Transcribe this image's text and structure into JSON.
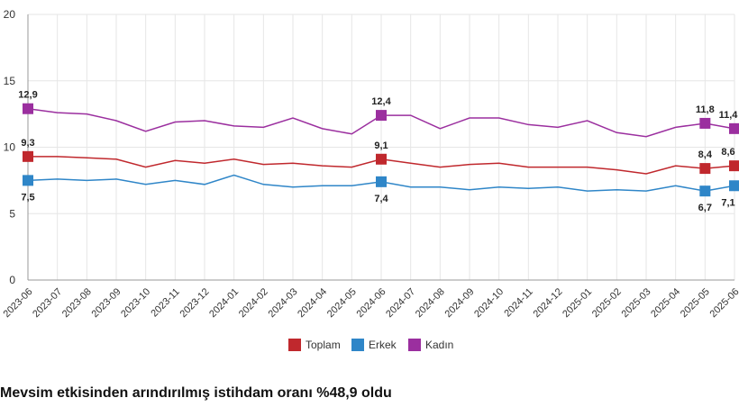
{
  "chart_data": {
    "type": "line",
    "title": "",
    "xlabel": "",
    "ylabel": "",
    "ylim": [
      0,
      20
    ],
    "yticks": [
      "0",
      "5",
      "10",
      "15",
      "20"
    ],
    "grid": true,
    "legend_position": "bottom",
    "categories": [
      "2023-06",
      "2023-07",
      "2023-08",
      "2023-09",
      "2023-10",
      "2023-11",
      "2023-12",
      "2024-01",
      "2024-02",
      "2024-03",
      "2024-04",
      "2024-05",
      "2024-06",
      "2024-07",
      "2024-08",
      "2024-09",
      "2024-10",
      "2024-11",
      "2024-12",
      "2025-01",
      "2025-02",
      "2025-03",
      "2025-04",
      "2025-05",
      "2025-06"
    ],
    "series": [
      {
        "name": "Toplam",
        "color": "#c0282d",
        "values": [
          9.3,
          9.3,
          9.2,
          9.1,
          8.5,
          9.0,
          8.8,
          9.1,
          8.7,
          8.8,
          8.6,
          8.5,
          9.1,
          8.8,
          8.5,
          8.7,
          8.8,
          8.5,
          8.5,
          8.5,
          8.3,
          8.0,
          8.6,
          8.4,
          8.6
        ],
        "labels": [
          {
            "index": 0,
            "text": "9,3"
          },
          {
            "index": 12,
            "text": "9,1"
          },
          {
            "index": 23,
            "text": "8,4"
          },
          {
            "index": 24,
            "text": "8,6"
          }
        ]
      },
      {
        "name": "Erkek",
        "color": "#2f86c8",
        "values": [
          7.5,
          7.6,
          7.5,
          7.6,
          7.2,
          7.5,
          7.2,
          7.9,
          7.2,
          7.0,
          7.1,
          7.1,
          7.4,
          7.0,
          7.0,
          6.8,
          7.0,
          6.9,
          7.0,
          6.7,
          6.8,
          6.7,
          7.1,
          6.7,
          7.1
        ],
        "labels": [
          {
            "index": 0,
            "text": "7,5"
          },
          {
            "index": 12,
            "text": "7,4"
          },
          {
            "index": 23,
            "text": "6,7"
          },
          {
            "index": 24,
            "text": "7,1"
          }
        ]
      },
      {
        "name": "Kadın",
        "color": "#9b2f9f",
        "values": [
          12.9,
          12.6,
          12.5,
          12.0,
          11.2,
          11.9,
          12.0,
          11.6,
          11.5,
          12.2,
          11.4,
          11.0,
          12.4,
          12.4,
          11.4,
          12.2,
          12.2,
          11.7,
          11.5,
          12.0,
          11.1,
          10.8,
          11.5,
          11.8,
          11.4
        ],
        "labels": [
          {
            "index": 0,
            "text": "12,9"
          },
          {
            "index": 12,
            "text": "12,4"
          },
          {
            "index": 23,
            "text": "11,8"
          },
          {
            "index": 24,
            "text": "11,4"
          }
        ]
      }
    ]
  },
  "headline": "Mevsim etkisinden arındırılmış istihdam oranı %48,9 oldu"
}
